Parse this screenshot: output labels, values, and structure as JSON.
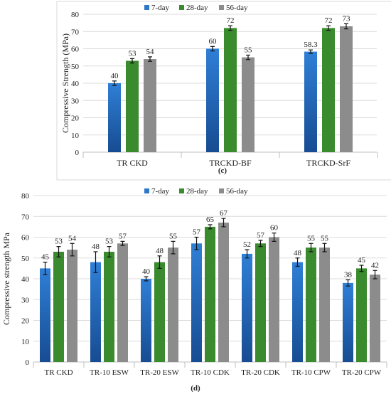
{
  "chart_data": [
    {
      "type": "bar",
      "panel_label": "(c)",
      "ylabel": "Compressive Strength (MPa)",
      "ylim": [
        0,
        80
      ],
      "yticks": [
        0,
        10,
        20,
        30,
        40,
        50,
        60,
        70,
        80
      ],
      "categories": [
        "TR CKD",
        "TRCKD-BF",
        "TRCKD-SrF"
      ],
      "legend_position": "top",
      "series": [
        {
          "name": "7-day",
          "color": "#2f78c8",
          "values": [
            40,
            60,
            58.3
          ],
          "errors": [
            1.3,
            1.3,
            1.0
          ],
          "labels": [
            "40",
            "60",
            "58.3"
          ]
        },
        {
          "name": "28-day",
          "color": "#3a8a2e",
          "values": [
            53,
            72,
            72
          ],
          "errors": [
            1.3,
            1.3,
            1.3
          ],
          "labels": [
            "53",
            "72",
            "72"
          ]
        },
        {
          "name": "56-day",
          "color": "#8c8c8c",
          "values": [
            54,
            55,
            73
          ],
          "errors": [
            1.3,
            1.3,
            1.5
          ],
          "labels": [
            "54",
            "55",
            "73"
          ]
        }
      ]
    },
    {
      "type": "bar",
      "panel_label": "(d)",
      "ylabel": "Compressive strength MPa",
      "ylim": [
        0,
        80
      ],
      "yticks": [
        0,
        10,
        20,
        30,
        40,
        50,
        60,
        70,
        80
      ],
      "categories": [
        "TR CKD",
        "TR-10 ESW",
        "TR-20 ESW",
        "TR-10 CDK",
        "TR-20 CDK",
        "TR-10 CPW",
        "TR-20 CPW"
      ],
      "legend_position": "top",
      "series": [
        {
          "name": "7-day",
          "color": "#2f78c8",
          "values": [
            45,
            48,
            40,
            57,
            52,
            48,
            38
          ],
          "errors": [
            3,
            5,
            1,
            3,
            2,
            2,
            1.5
          ],
          "labels": [
            "45",
            "48",
            "40",
            "57",
            "52",
            "48",
            "38"
          ]
        },
        {
          "name": "28-day",
          "color": "#3a8a2e",
          "values": [
            53,
            53,
            48,
            65,
            57,
            55,
            45
          ],
          "errors": [
            2.5,
            2.5,
            3,
            1,
            1.5,
            2,
            1.5
          ],
          "labels": [
            "53",
            "53",
            "48",
            "65",
            "57",
            "55",
            "45"
          ]
        },
        {
          "name": "56-day",
          "color": "#8c8c8c",
          "values": [
            54,
            57,
            55,
            67,
            60,
            55,
            42
          ],
          "errors": [
            3,
            1,
            3,
            2,
            2,
            2,
            2
          ],
          "labels": [
            "54",
            "57",
            "55",
            "67",
            "60",
            "55",
            "42"
          ]
        }
      ]
    }
  ]
}
